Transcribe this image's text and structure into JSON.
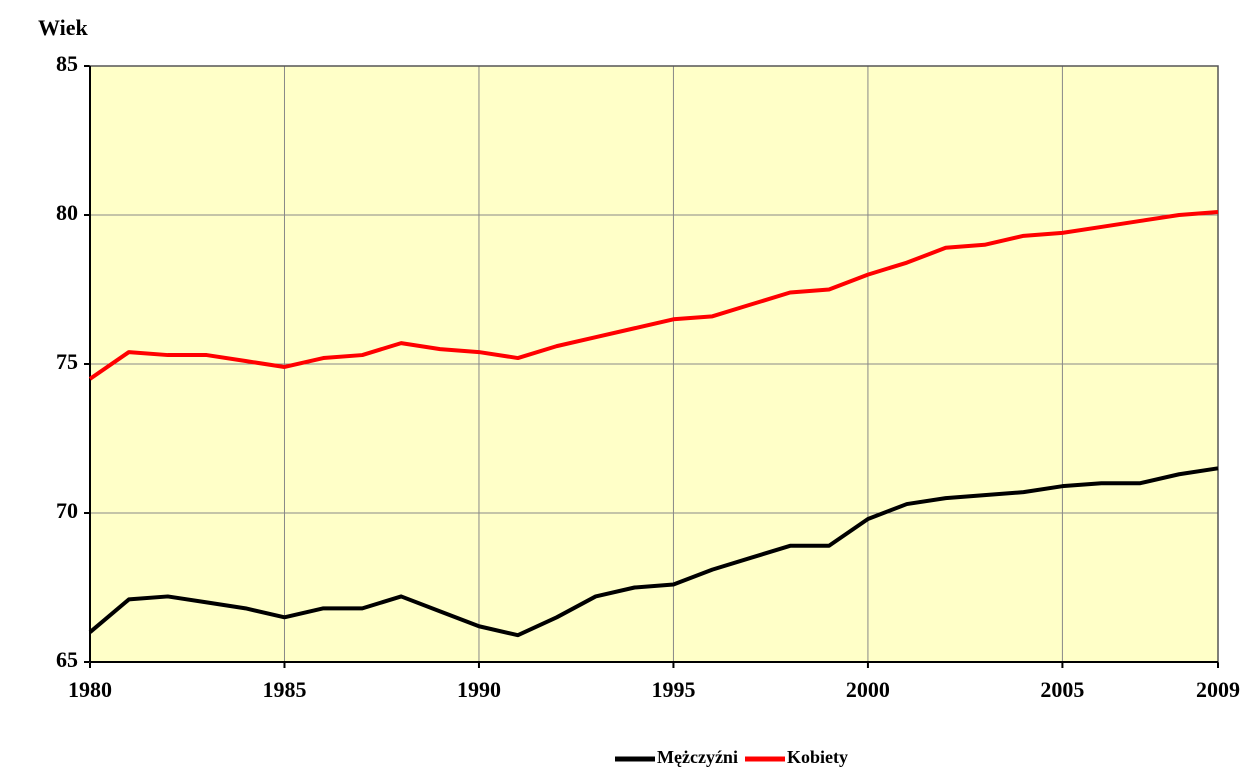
{
  "chart_data": {
    "type": "line",
    "y_label": "Wiek",
    "x": [
      1980,
      1981,
      1982,
      1983,
      1984,
      1985,
      1986,
      1987,
      1988,
      1989,
      1990,
      1991,
      1992,
      1993,
      1994,
      1995,
      1996,
      1997,
      1998,
      1999,
      2000,
      2001,
      2002,
      2003,
      2004,
      2005,
      2006,
      2007,
      2008,
      2009
    ],
    "series": [
      {
        "name": "Mężczyźni",
        "color": "#000000",
        "values": [
          66.0,
          67.1,
          67.2,
          67.0,
          66.8,
          66.5,
          66.8,
          66.8,
          67.2,
          66.7,
          66.2,
          65.9,
          66.5,
          67.2,
          67.5,
          67.6,
          68.1,
          68.5,
          68.9,
          68.9,
          69.8,
          70.3,
          70.5,
          70.6,
          70.7,
          70.9,
          71.0,
          71.0,
          71.3,
          71.5
        ]
      },
      {
        "name": "Kobiety",
        "color": "#ff0000",
        "values": [
          74.5,
          75.4,
          75.3,
          75.3,
          75.1,
          74.9,
          75.2,
          75.3,
          75.7,
          75.5,
          75.4,
          75.2,
          75.6,
          75.9,
          76.2,
          76.5,
          76.6,
          77.0,
          77.4,
          77.5,
          78.0,
          78.4,
          78.9,
          79.0,
          79.3,
          79.4,
          79.6,
          79.8,
          80.0,
          80.1
        ]
      }
    ],
    "xlim": [
      1980,
      2009
    ],
    "xticks": [
      1980,
      1985,
      1990,
      1995,
      2000,
      2005,
      2009
    ],
    "ylim": [
      65,
      85
    ],
    "yticks": [
      65,
      70,
      75,
      80,
      85
    ],
    "grid": true,
    "plot_background": "#ffffc8",
    "legend": "bottom"
  }
}
